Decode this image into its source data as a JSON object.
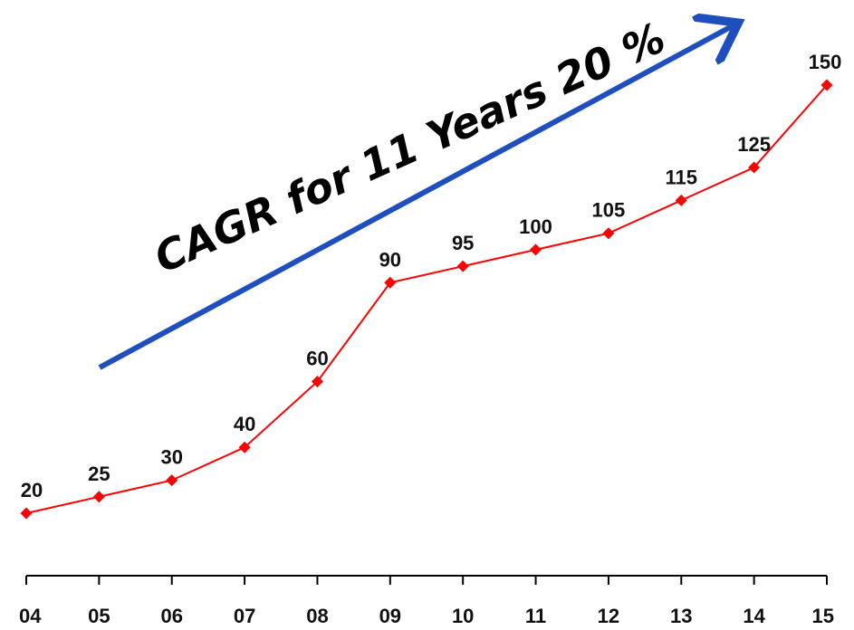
{
  "chart_data": {
    "type": "line",
    "categories": [
      "04",
      "05",
      "06",
      "07",
      "08",
      "09",
      "10",
      "11",
      "12",
      "13",
      "14",
      "15"
    ],
    "series": [
      {
        "values": [
          20,
          25,
          30,
          40,
          60,
          90,
          95,
          100,
          105,
          115,
          125,
          150
        ],
        "color": "#ff0000"
      }
    ],
    "data_labels": [
      "20",
      "25",
      "30",
      "40",
      "60",
      "90",
      "95",
      "100",
      "105",
      "115",
      "125",
      "150"
    ],
    "annotation": {
      "text": "CAGR for 11 Years 20 %",
      "arrow_color": "#1f4fbf"
    },
    "axis_color": "#000000",
    "ylim": [
      0,
      160
    ],
    "grid": false,
    "legend": "none"
  }
}
